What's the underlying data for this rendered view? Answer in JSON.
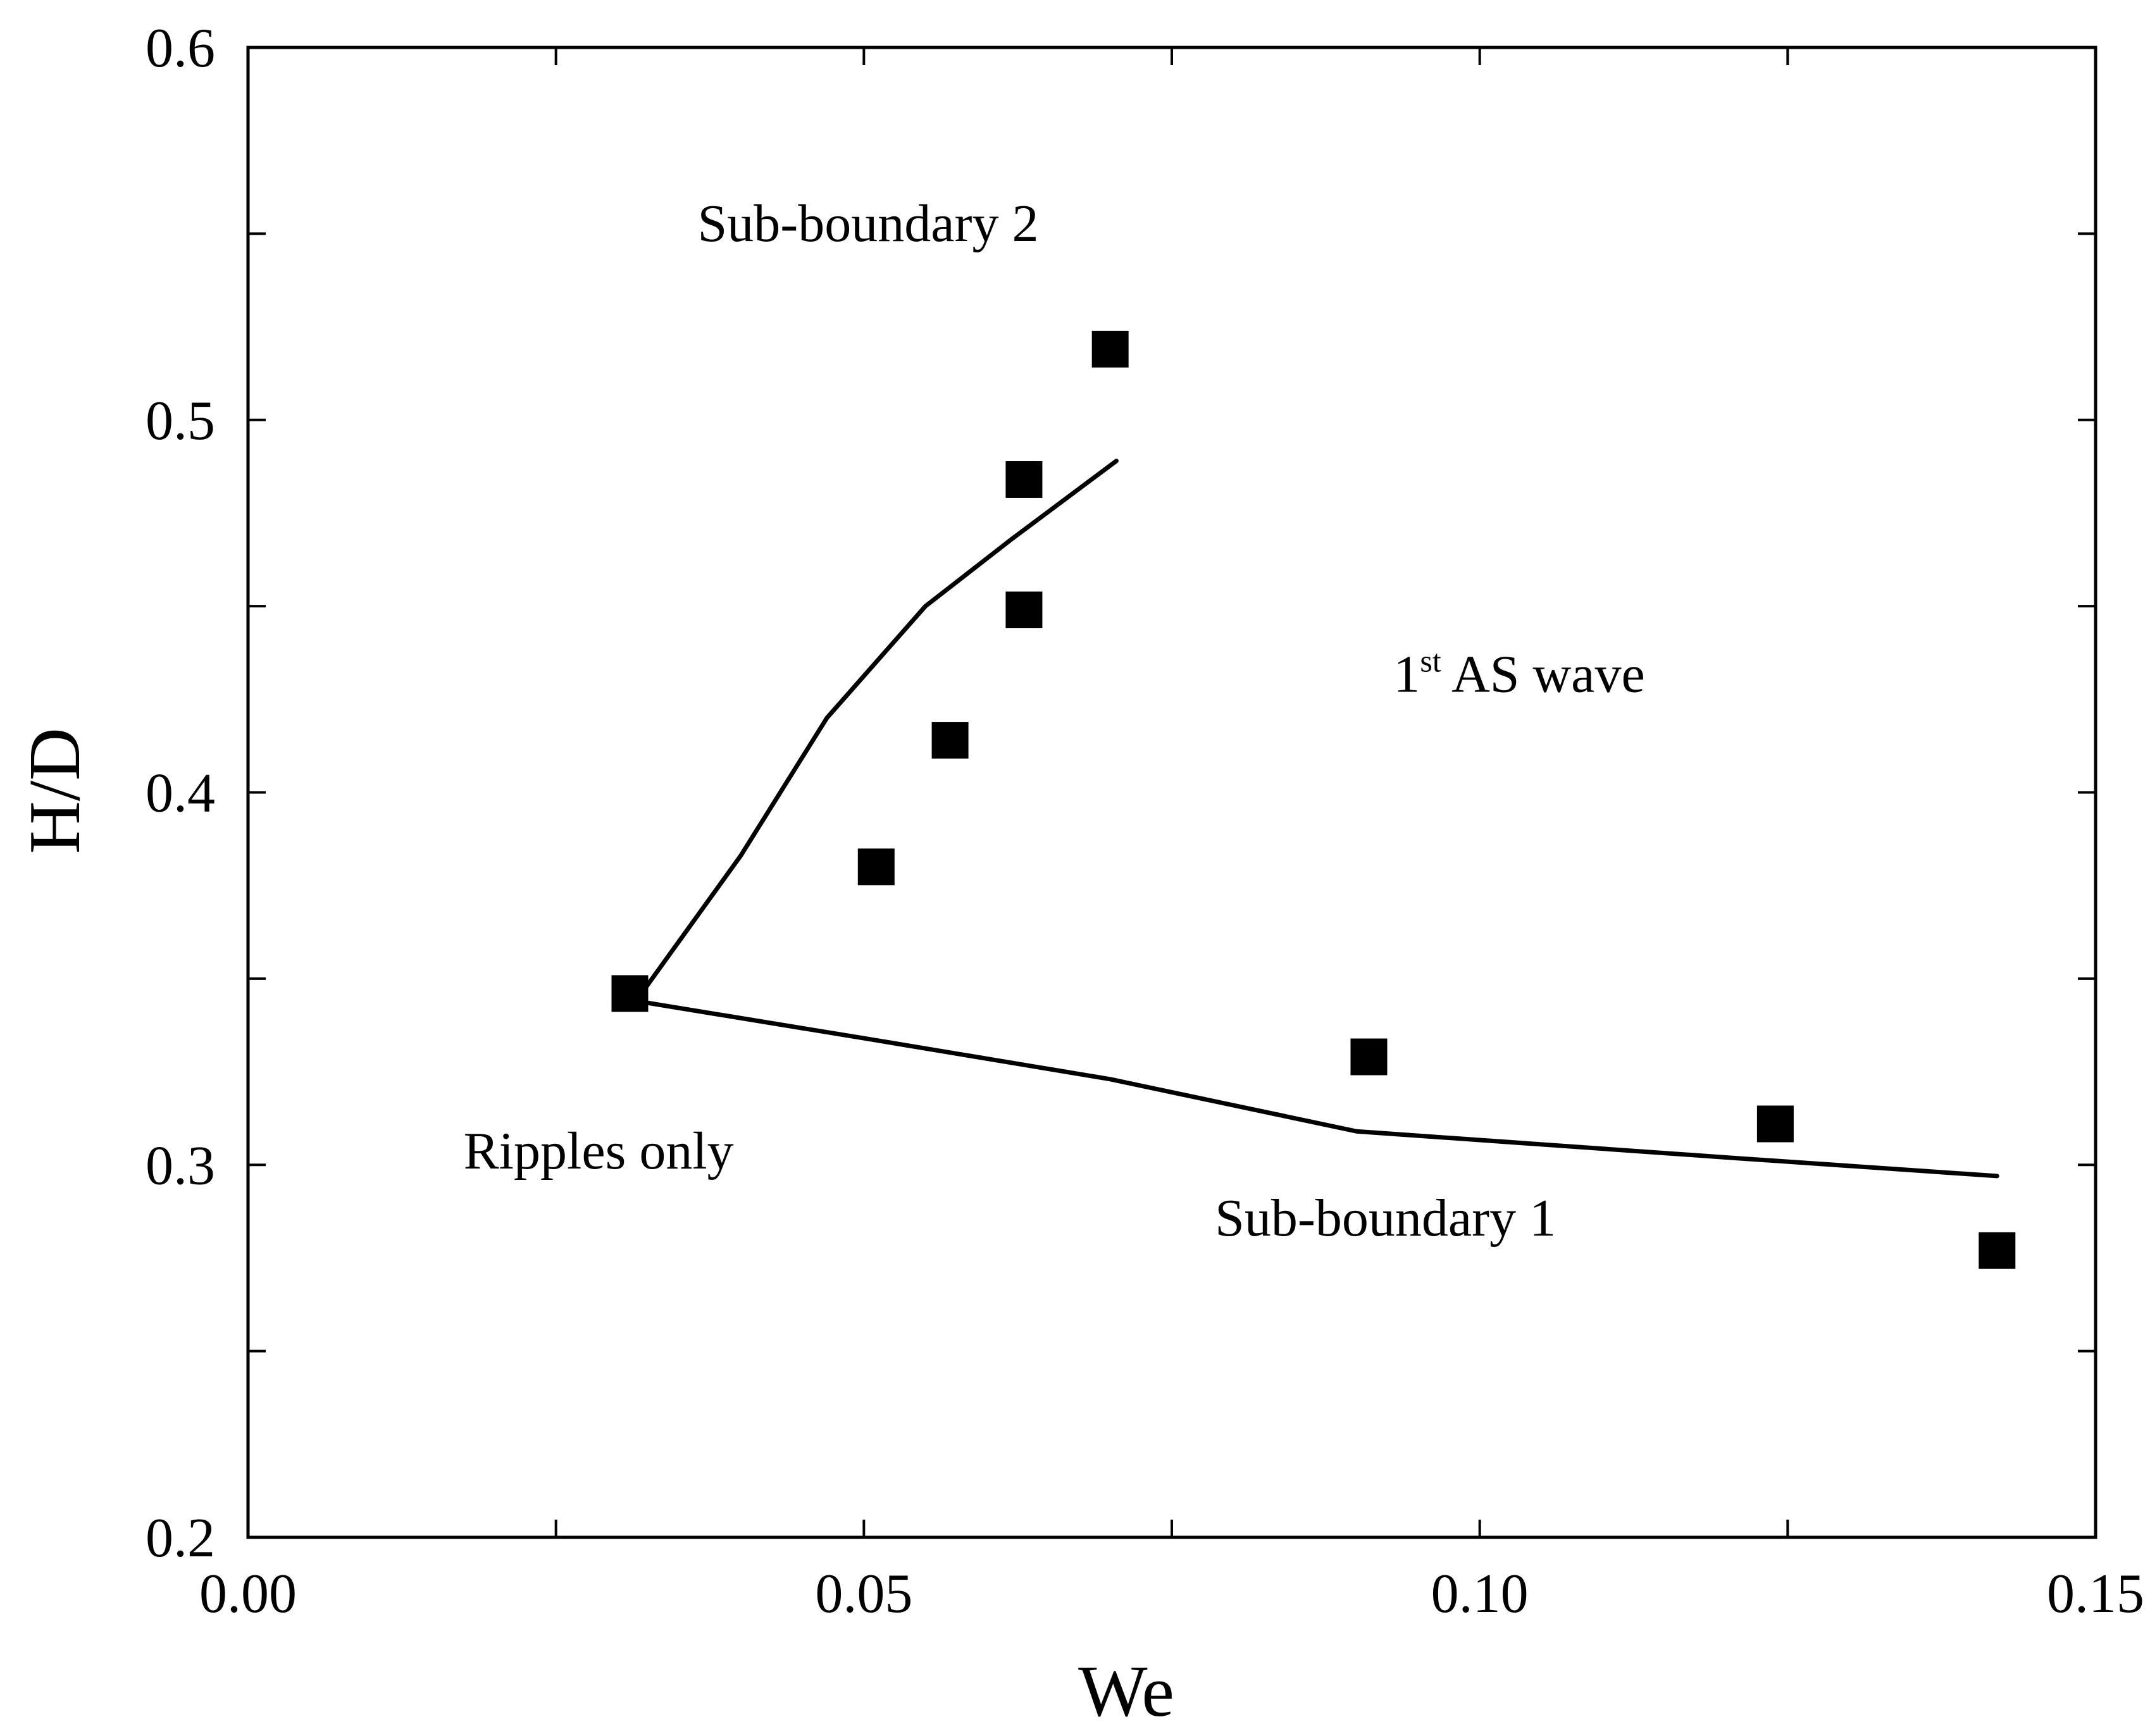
{
  "chart_data": {
    "type": "scatter",
    "title": "",
    "xlabel": "We",
    "ylabel": "H/D",
    "xlim": [
      0.0,
      0.15
    ],
    "ylim": [
      0.2,
      0.6
    ],
    "x_ticks": [
      0.0,
      0.025,
      0.05,
      0.075,
      0.1,
      0.125,
      0.15
    ],
    "y_ticks": [
      0.2,
      0.25,
      0.3,
      0.35,
      0.4,
      0.45,
      0.5,
      0.55,
      0.6
    ],
    "x_tick_labels": [
      {
        "value": 0.0,
        "label": "0.00"
      },
      {
        "value": 0.05,
        "label": "0.05"
      },
      {
        "value": 0.1,
        "label": "0.10"
      },
      {
        "value": 0.15,
        "label": "0.15"
      }
    ],
    "y_tick_labels": [
      {
        "value": 0.2,
        "label": "0.2"
      },
      {
        "value": 0.3,
        "label": "0.3"
      },
      {
        "value": 0.4,
        "label": "0.4"
      },
      {
        "value": 0.5,
        "label": "0.5"
      },
      {
        "value": 0.6,
        "label": "0.6"
      }
    ],
    "grid": false,
    "legend": "none",
    "series": [
      {
        "name": "data",
        "kind": "scatter",
        "marker": "filled-square",
        "color": "#000000",
        "points": [
          {
            "x": 0.031,
            "y": 0.346
          },
          {
            "x": 0.051,
            "y": 0.38
          },
          {
            "x": 0.057,
            "y": 0.414
          },
          {
            "x": 0.063,
            "y": 0.449
          },
          {
            "x": 0.063,
            "y": 0.484
          },
          {
            "x": 0.07,
            "y": 0.519
          },
          {
            "x": 0.091,
            "y": 0.329
          },
          {
            "x": 0.124,
            "y": 0.311
          },
          {
            "x": 0.142,
            "y": 0.277
          }
        ]
      },
      {
        "name": "Sub-boundary 2",
        "kind": "line",
        "color": "#000000",
        "points": [
          {
            "x": 0.0315,
            "y": 0.344
          },
          {
            "x": 0.04,
            "y": 0.383
          },
          {
            "x": 0.047,
            "y": 0.42
          },
          {
            "x": 0.055,
            "y": 0.45
          },
          {
            "x": 0.062,
            "y": 0.468
          },
          {
            "x": 0.0705,
            "y": 0.489
          }
        ]
      },
      {
        "name": "Sub-boundary 1",
        "kind": "line",
        "color": "#000000",
        "points": [
          {
            "x": 0.0315,
            "y": 0.344
          },
          {
            "x": 0.05,
            "y": 0.334
          },
          {
            "x": 0.07,
            "y": 0.323
          },
          {
            "x": 0.09,
            "y": 0.309
          },
          {
            "x": 0.12,
            "y": 0.302
          },
          {
            "x": 0.142,
            "y": 0.297
          }
        ]
      }
    ],
    "annotations": [
      {
        "id": "sub-boundary-2",
        "text": "Sub-boundary 2",
        "x": 0.0365,
        "y": 0.548
      },
      {
        "id": "first-as-wave",
        "text": "1",
        "sup": "st",
        "rest": " AS wave",
        "x": 0.093,
        "y": 0.427
      },
      {
        "id": "ripples-only",
        "text": "Ripples only",
        "x": 0.0175,
        "y": 0.299
      },
      {
        "id": "sub-boundary-1",
        "text": "Sub-boundary 1",
        "x": 0.0785,
        "y": 0.281
      }
    ]
  }
}
